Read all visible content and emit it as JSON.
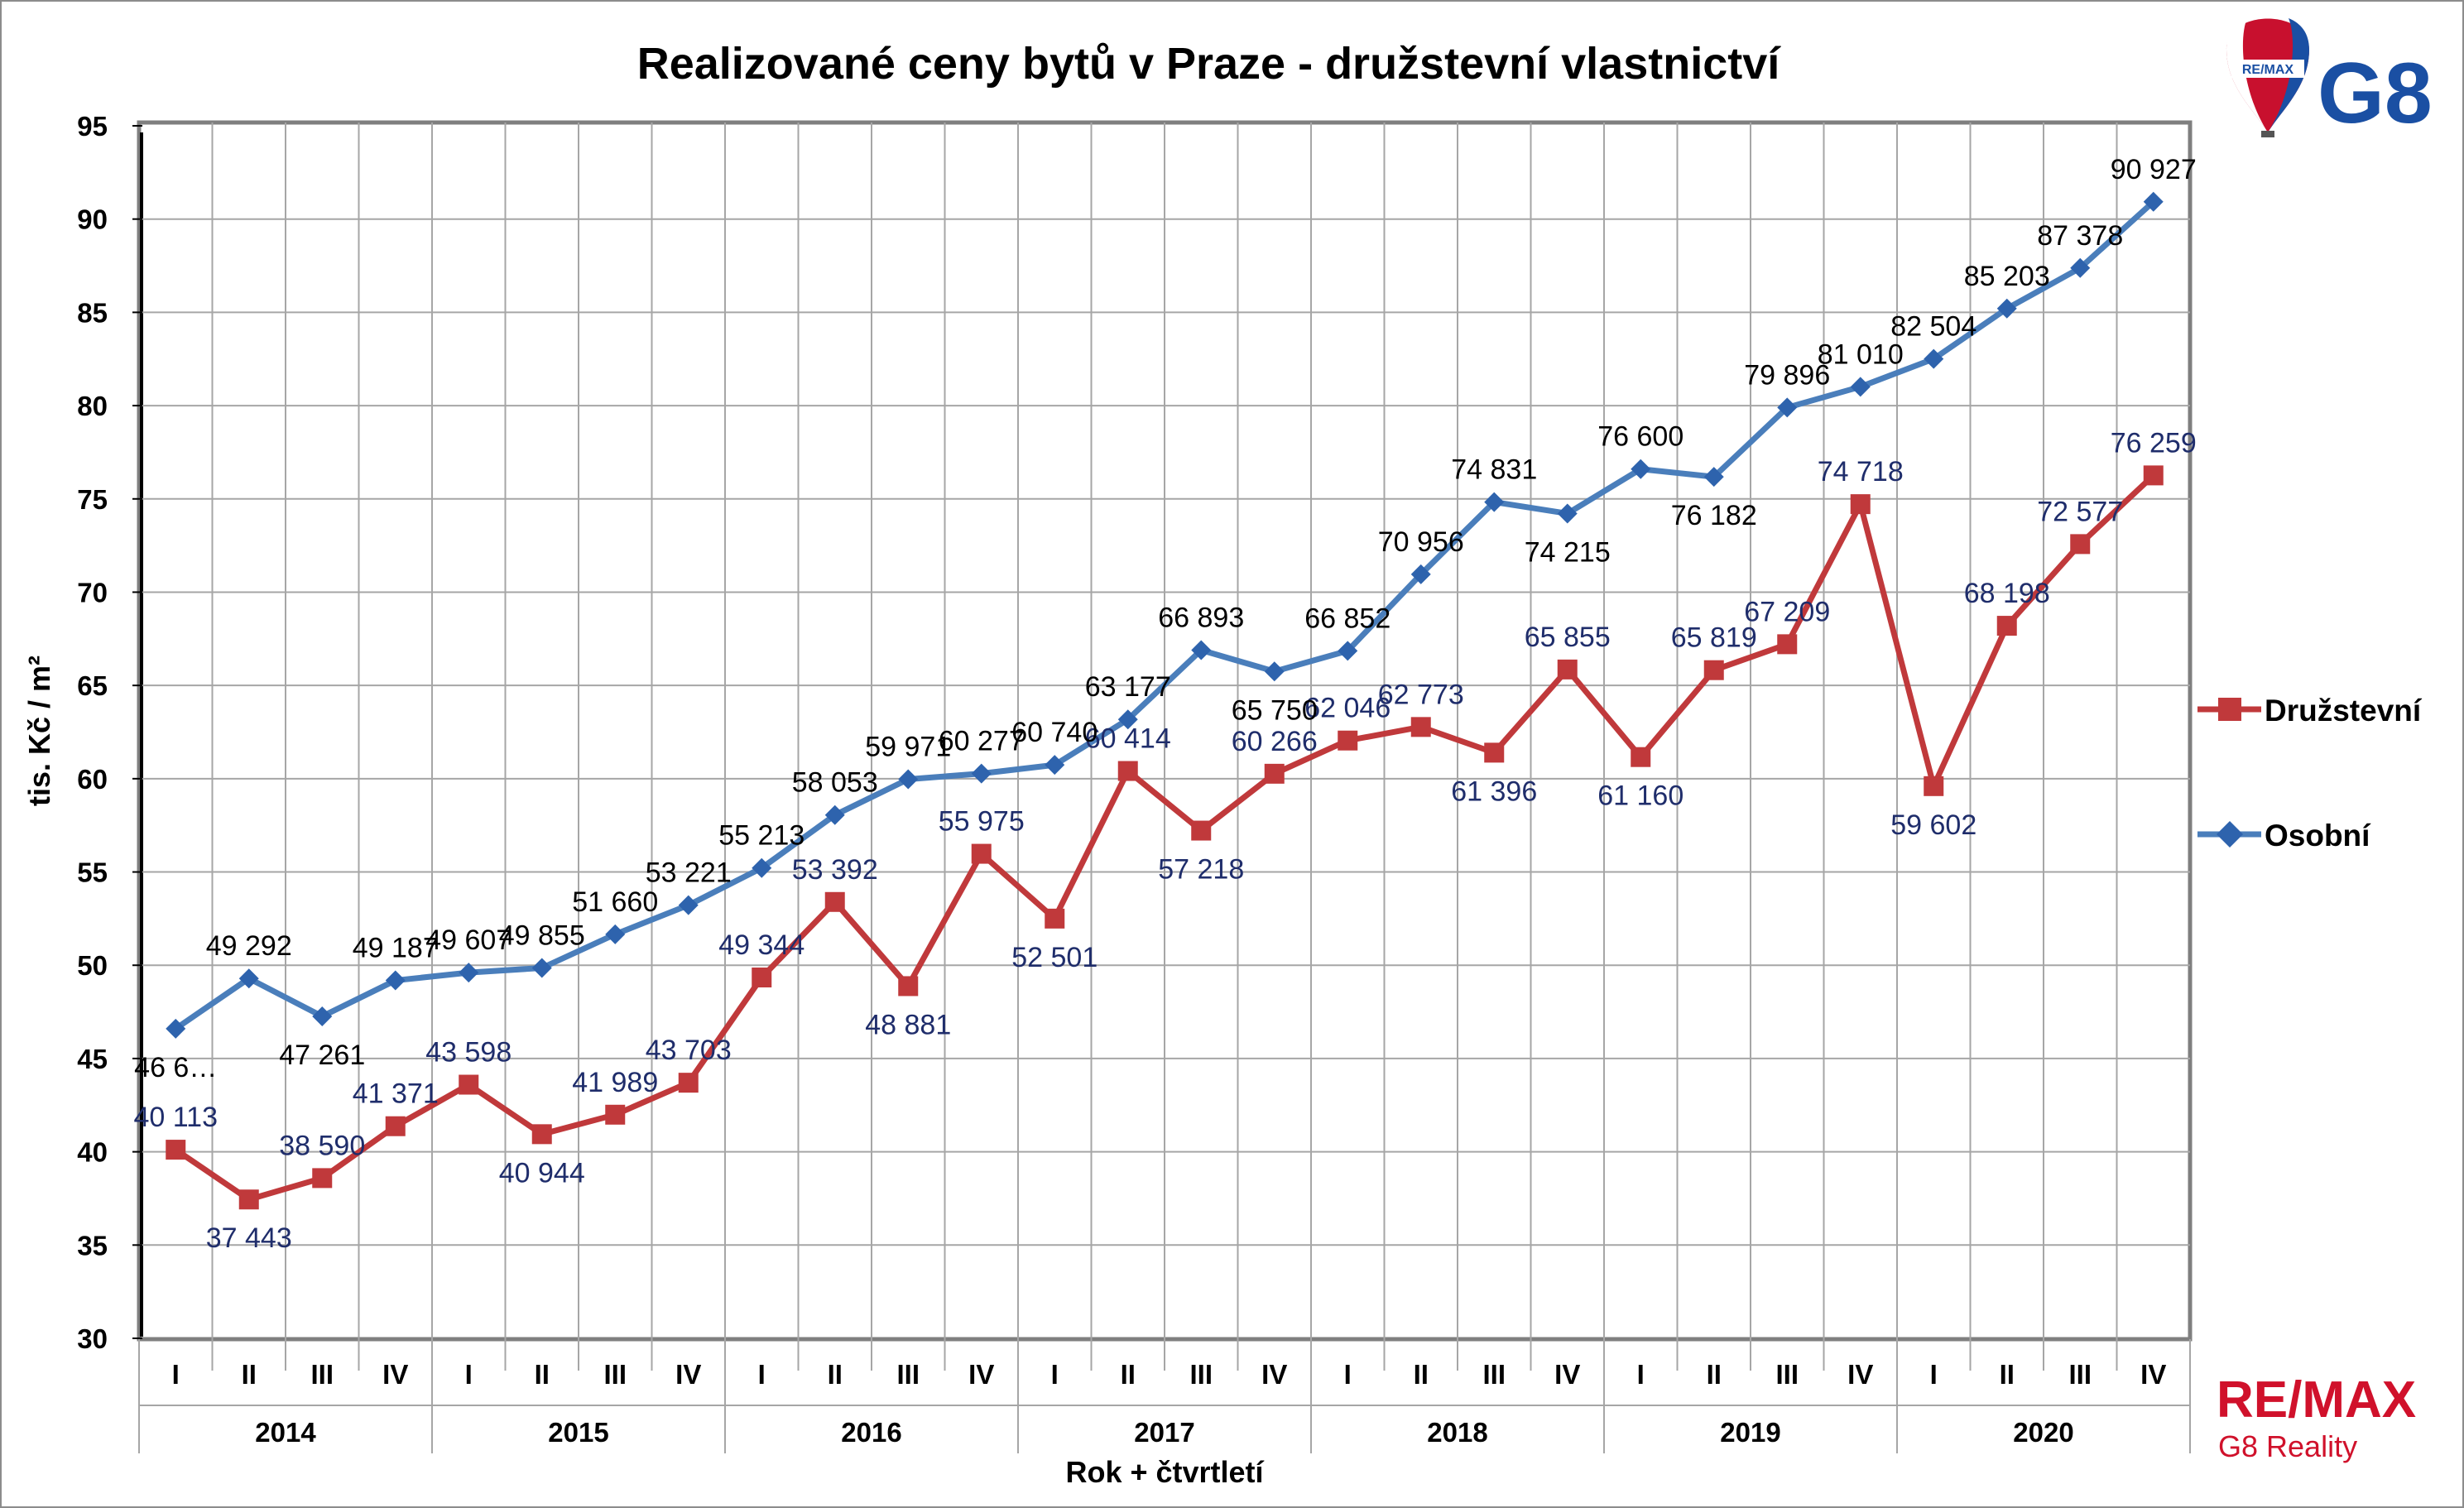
{
  "chart_data": {
    "type": "line",
    "title": "Realizované ceny bytů v Praze - družstevní vlastnictví",
    "ylabel": "tis. Kč / m²",
    "xlabel": "Rok + čtvrtletí",
    "ylim": [
      30,
      95
    ],
    "yticks": [
      30,
      35,
      40,
      45,
      50,
      55,
      60,
      65,
      70,
      75,
      80,
      85,
      90,
      95
    ],
    "grid": true,
    "legend_position": "right",
    "categories": [
      "I",
      "II",
      "III",
      "IV",
      "I",
      "II",
      "III",
      "IV",
      "I",
      "II",
      "III",
      "IV",
      "I",
      "II",
      "III",
      "IV",
      "I",
      "II",
      "III",
      "IV",
      "I",
      "II",
      "III",
      "IV",
      "I",
      "II",
      "III",
      "IV"
    ],
    "years": [
      "2014",
      "2015",
      "2016",
      "2017",
      "2018",
      "2019",
      "2020"
    ],
    "series": [
      {
        "name": "Družstevní",
        "color": "#c0393b",
        "marker": "square",
        "values": [
          40.113,
          37.443,
          38.59,
          41.371,
          43.598,
          40.944,
          41.989,
          43.703,
          49.344,
          53.392,
          48.881,
          55.975,
          52.501,
          60.414,
          57.218,
          60.266,
          62.046,
          62.773,
          61.396,
          65.855,
          61.16,
          65.819,
          67.209,
          74.718,
          59.602,
          68.198,
          72.577,
          76.259
        ],
        "labels": [
          "40 113",
          "37 443",
          "38 590",
          "41 371",
          "43 598",
          "40 944",
          "41 989",
          "43 703",
          "49 344",
          "53 392",
          "48 881",
          "55 975",
          "52 501",
          "60 414",
          "57 218",
          "60 266",
          "62 046",
          "62 773",
          "61 396",
          "65 855",
          "61 160",
          "65 819",
          "67 209",
          "74 718",
          "59 602",
          "68 198",
          "72 577",
          "76 259"
        ]
      },
      {
        "name": "Osobní",
        "color": "#4a7ebb",
        "marker": "diamond",
        "values": [
          46.6,
          49.292,
          47.261,
          49.187,
          49.607,
          49.855,
          51.66,
          53.221,
          55.213,
          58.053,
          59.971,
          60.277,
          60.74,
          63.177,
          66.893,
          65.75,
          66.852,
          70.956,
          74.831,
          74.215,
          76.6,
          76.182,
          79.896,
          81.01,
          82.504,
          85.203,
          87.378,
          90.927
        ],
        "labels": [
          "46 6…",
          "49 292",
          "47 261",
          "49 187",
          "49 607",
          "49 855",
          "51 660",
          "53 221",
          "55 213",
          "58 053",
          "59 971",
          "60 277",
          "60 740",
          "63 177",
          "66 893",
          "65 750",
          "66 852",
          "70 956",
          "74 831",
          "74 215",
          "76 600",
          "76 182",
          "79 896",
          "81 010",
          "82 504",
          "85 203",
          "87 378",
          "90 927"
        ]
      }
    ]
  },
  "logo": {
    "brand": "RE/MAX",
    "code": "G8"
  },
  "footer_logo": {
    "brand": "RE/MAX",
    "subtitle": "G8 Reality"
  }
}
